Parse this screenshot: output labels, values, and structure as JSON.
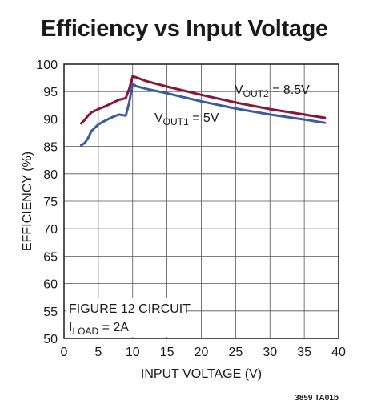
{
  "chart_data": {
    "type": "line",
    "title": "Efficiency vs Input Voltage",
    "xlabel": "INPUT VOLTAGE (V)",
    "ylabel": "EFFICIENCY (%)",
    "xlim": [
      0,
      40
    ],
    "ylim": [
      50,
      100
    ],
    "xticks": [
      0,
      5,
      10,
      15,
      20,
      25,
      30,
      35,
      40
    ],
    "yticks": [
      50,
      55,
      60,
      65,
      70,
      75,
      80,
      85,
      90,
      95,
      100
    ],
    "grid": true,
    "series": [
      {
        "name_main": "V",
        "name_sub": "OUT2",
        "name_rest": " = 8.5V",
        "color": "#8b1538",
        "x": [
          2.5,
          3.0,
          3.5,
          4.0,
          5.0,
          6.0,
          7.0,
          8.0,
          9.0,
          9.5,
          10.0,
          10.5,
          12.0,
          15.0,
          20.0,
          25.0,
          30.0,
          35.0,
          38.0
        ],
        "y": [
          89.2,
          89.8,
          90.6,
          91.2,
          91.8,
          92.3,
          92.9,
          93.5,
          93.8,
          95.5,
          97.8,
          97.6,
          96.9,
          95.9,
          94.4,
          93.0,
          91.8,
          90.8,
          90.2
        ]
      },
      {
        "name_main": "V",
        "name_sub": "OUT1",
        "name_rest": " = 5V",
        "color": "#3a5aa6",
        "x": [
          2.5,
          3.0,
          3.5,
          4.0,
          5.0,
          6.0,
          7.0,
          8.0,
          9.0,
          9.5,
          10.0,
          10.5,
          12.0,
          15.0,
          20.0,
          25.0,
          30.0,
          35.0,
          38.0
        ],
        "y": [
          85.2,
          85.6,
          86.5,
          87.8,
          89.0,
          89.7,
          90.3,
          90.8,
          90.6,
          93.0,
          96.4,
          96.0,
          95.5,
          94.7,
          93.2,
          91.9,
          90.8,
          89.9,
          89.3
        ]
      }
    ],
    "annotation": {
      "line1": "FIGURE 12 CIRCUIT",
      "line2_main": "I",
      "line2_sub": "LOAD",
      "line2_rest": " = 2A"
    },
    "figure_code": "3859 TA01b"
  }
}
